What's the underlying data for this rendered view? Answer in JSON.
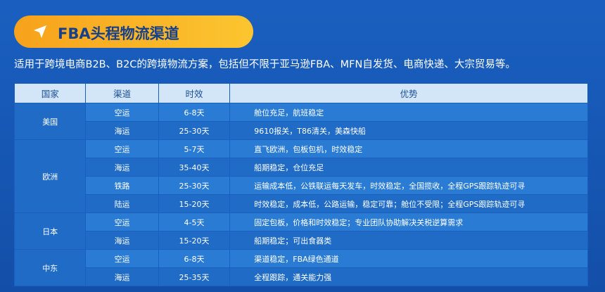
{
  "header": {
    "title": "FBA头程物流渠道",
    "intro": "适用于跨境电商B2B、B2C的跨境物流方案，包括但不限于亚马逊FBA、MFN自发货、电商快递、大宗贸易等。"
  },
  "table": {
    "headers": [
      "国家",
      "渠道",
      "时效",
      "优势"
    ],
    "groups": [
      {
        "region": "美国",
        "rows": [
          [
            "空运",
            "6-8天",
            "舱位充足，航班稳定"
          ],
          [
            "海运",
            "25-30天",
            "9610报关，T86清关，美森快船"
          ]
        ]
      },
      {
        "region": "欧洲",
        "rows": [
          [
            "空运",
            "5-7天",
            "直飞欧洲，包板包机，时效稳定"
          ],
          [
            "海运",
            "35-40天",
            "船期稳定，仓位充足"
          ],
          [
            "铁路",
            "25-30天",
            "运输成本低，公铁联运每天发车，时效稳定，全国揽收，全程GPS跟踪轨迹可寻"
          ],
          [
            "陆运",
            "15-20天",
            "时效稳定，成本低，公路运输，稳定可靠；舱位不受限；全程GPS跟踪轨迹可寻"
          ]
        ]
      },
      {
        "region": "日本",
        "rows": [
          [
            "空运",
            "4-5天",
            "固定包板，价格和时效稳定；专业团队协助解决关税逆算需求"
          ],
          [
            "海运",
            "15-20天",
            "船期稳定；可出食器类"
          ]
        ]
      },
      {
        "region": "中东",
        "rows": [
          [
            "空运",
            "6-8天",
            "渠道稳定，FBA绿色通道"
          ],
          [
            "海运",
            "25-35天",
            "全程跟踪，通关能力强"
          ]
        ]
      }
    ]
  }
}
